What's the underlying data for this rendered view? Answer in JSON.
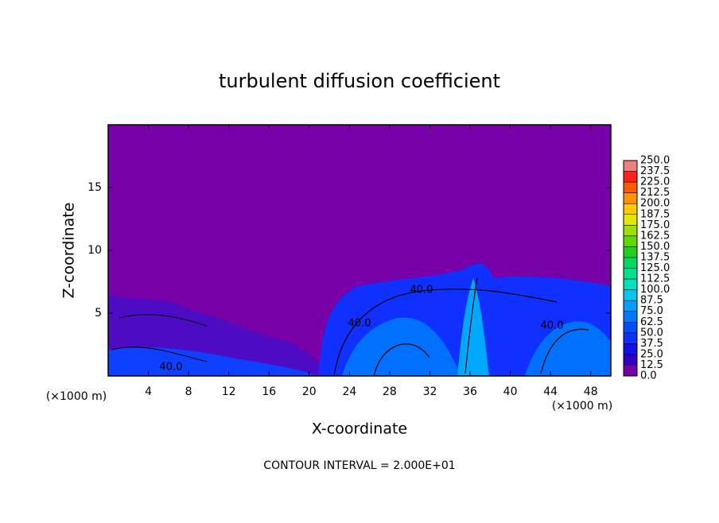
{
  "chart_data": {
    "type": "contour",
    "title": "turbulent diffusion coefficient",
    "x_label": "X-coordinate",
    "y_label": "Z-coordinate",
    "x_unit_label": "(×1000 m)",
    "y_unit_label": "(×1000 m)",
    "footnote": "CONTOUR INTERVAL = 2.000E+01",
    "contour_labels": [
      "40.0",
      "40.0",
      "40.0",
      "40.0"
    ],
    "xlim": [
      0,
      50
    ],
    "xticks": [
      4,
      8,
      12,
      16,
      20,
      24,
      28,
      32,
      36,
      40,
      44,
      48
    ],
    "ylim": [
      0,
      20
    ],
    "yticks": [
      5,
      10,
      15
    ],
    "colorbar": {
      "lim": [
        0,
        250
      ],
      "ticks": [
        {
          "value": 0,
          "label": "0.0"
        },
        12.5,
        {
          "value": 25,
          "label": "25.0"
        },
        37.5,
        {
          "value": 50,
          "label": "50.0"
        },
        62.5,
        {
          "value": 75,
          "label": "75.0"
        },
        87.5,
        {
          "value": 100,
          "label": "100.0"
        },
        112.5,
        {
          "value": 125,
          "label": "125.0"
        },
        137.5,
        {
          "value": 150,
          "label": "150.0"
        },
        162.5,
        {
          "value": 175,
          "label": "175.0"
        },
        187.5,
        {
          "value": 200,
          "label": "200.0"
        },
        212.5,
        {
          "value": 225,
          "label": "225.0"
        },
        237.5,
        {
          "value": 250,
          "label": "250.0"
        }
      ],
      "colors": [
        "#7800a8",
        "#3000c8",
        "#1010e8",
        "#1030ff",
        "#0050ff",
        "#0078ff",
        "#00a0ff",
        "#00c8f0",
        "#00e0c0",
        "#00e090",
        "#00d860",
        "#20d020",
        "#60d800",
        "#a0e000",
        "#e0e800",
        "#ffc800",
        "#ff9600",
        "#ff5a00",
        "#ff2020",
        "#f08080"
      ]
    }
  }
}
